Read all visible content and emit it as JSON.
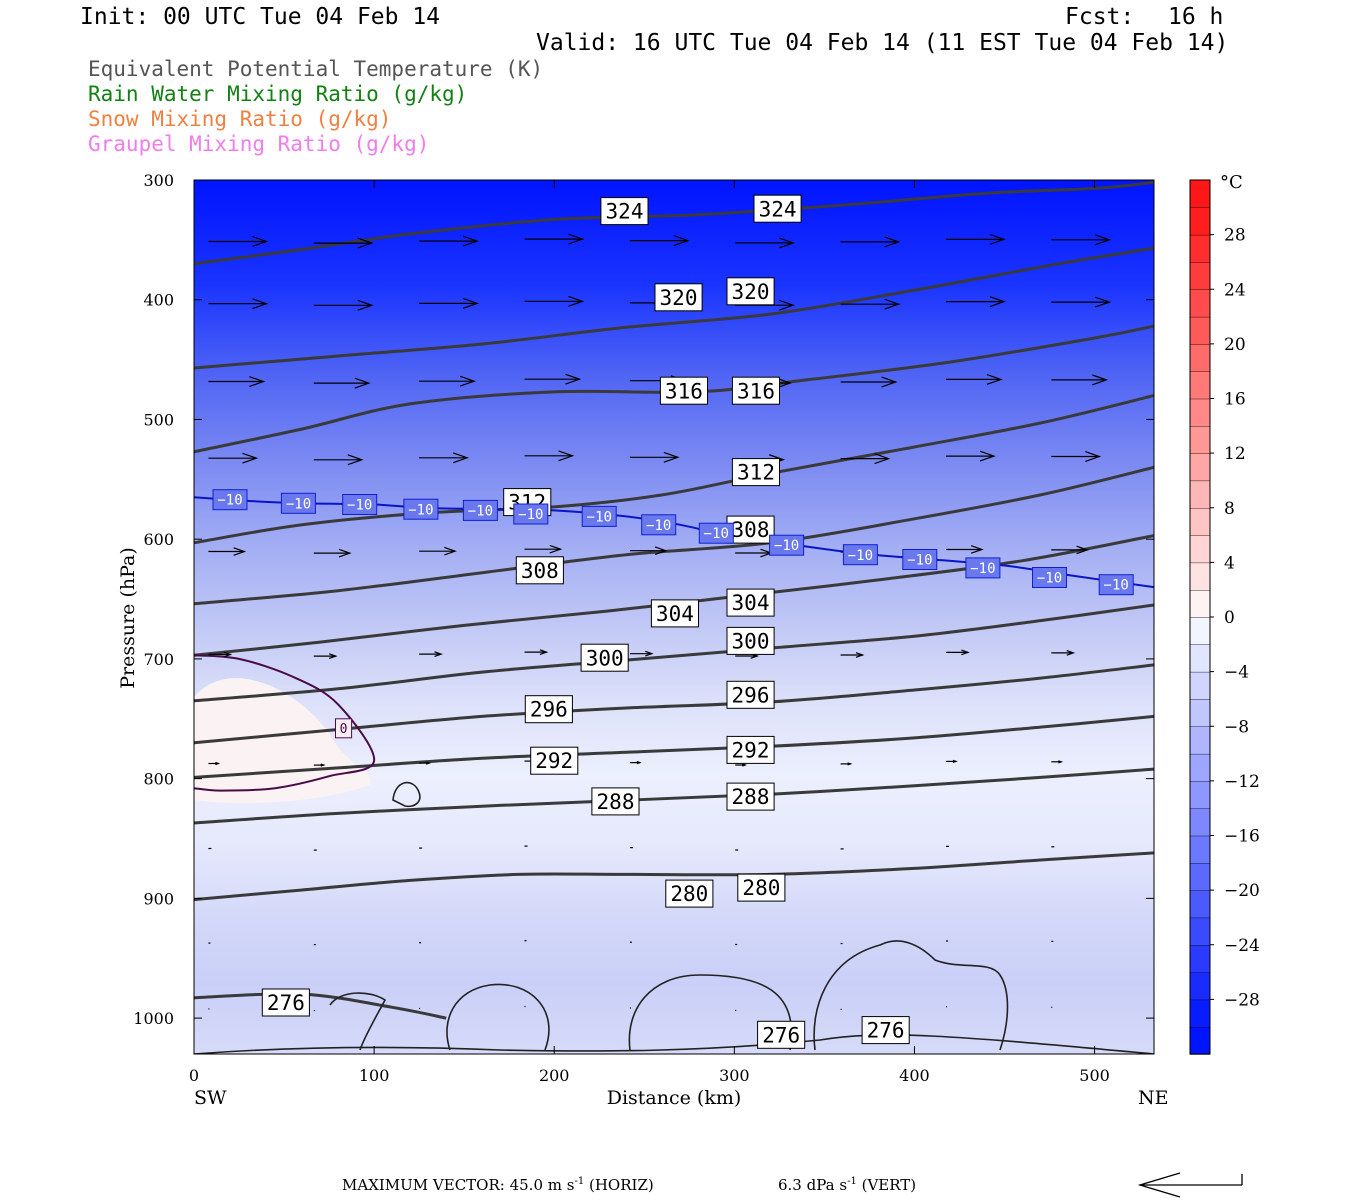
{
  "header": {
    "init": "Init: 00 UTC Tue 04 Feb 14",
    "fcst_label": "Fcst:",
    "fcst_value": "16 h",
    "valid": "Valid: 16 UTC Tue 04 Feb 14 (11 EST Tue 04 Feb 14)"
  },
  "legend": [
    {
      "text": "Equivalent Potential Temperature (K)",
      "color": "#555555"
    },
    {
      "text": "Rain Water Mixing Ratio (g/kg)",
      "color": "#138013"
    },
    {
      "text": "Snow Mixing Ratio (g/kg)",
      "color": "#f08040"
    },
    {
      "text": "Graupel Mixing Ratio (g/kg)",
      "color": "#f07cf0"
    }
  ],
  "footer": {
    "max_vector": "MAXIMUM VECTOR:  45.0 m s",
    "horiz_unit": "(HORIZ)",
    "vert_value": "6.3 dPa s",
    "vert_unit": "(VERT)",
    "exp": "-1"
  },
  "chart_data": {
    "type": "cross-section",
    "xlabel": "Distance (km)",
    "ylabel": "Pressure (hPa)",
    "x_range": [
      0,
      533
    ],
    "y_range": [
      300,
      1030
    ],
    "x_ticks": [
      0,
      100,
      200,
      300,
      400,
      500
    ],
    "y_ticks": [
      300,
      400,
      500,
      600,
      700,
      800,
      900,
      1000
    ],
    "left_end_label": "SW",
    "right_end_label": "NE",
    "colorbar": {
      "unit": "°C",
      "levels": [
        -32,
        -30,
        -28,
        -26,
        -24,
        -22,
        -20,
        -18,
        -16,
        -14,
        -12,
        -10,
        -8,
        -6,
        -4,
        -2,
        0,
        2,
        4,
        6,
        8,
        10,
        12,
        14,
        16,
        18,
        20,
        22,
        24,
        26,
        28,
        30,
        32
      ],
      "tick_labels": [
        "28",
        "24",
        "20",
        "16",
        "12",
        "8",
        "4",
        "0",
        "−4",
        "−8",
        "−12",
        "−16",
        "−20",
        "−24",
        "−28"
      ],
      "tick_values": [
        28,
        24,
        20,
        16,
        12,
        8,
        4,
        0,
        -4,
        -8,
        -12,
        -16,
        -20,
        -24,
        -28
      ]
    },
    "theta_e_contours": [
      {
        "value": 324,
        "points": [
          [
            0,
            370
          ],
          [
            60,
            358
          ],
          [
            120,
            345
          ],
          [
            200,
            333
          ],
          [
            280,
            329
          ],
          [
            360,
            321
          ],
          [
            440,
            311
          ],
          [
            500,
            307
          ],
          [
            533,
            302
          ]
        ],
        "labels": [
          [
            239,
            326
          ],
          [
            324,
            324
          ]
        ]
      },
      {
        "value": 320,
        "points": [
          [
            0,
            457
          ],
          [
            80,
            447
          ],
          [
            160,
            437
          ],
          [
            240,
            423
          ],
          [
            320,
            412
          ],
          [
            400,
            392
          ],
          [
            480,
            370
          ],
          [
            533,
            357
          ]
        ],
        "labels": [
          [
            269,
            398
          ],
          [
            309,
            393
          ]
        ]
      },
      {
        "value": 316,
        "points": [
          [
            0,
            527
          ],
          [
            60,
            508
          ],
          [
            120,
            487
          ],
          [
            200,
            477
          ],
          [
            280,
            477
          ],
          [
            340,
            467
          ],
          [
            420,
            452
          ],
          [
            500,
            432
          ],
          [
            533,
            422
          ]
        ],
        "labels": [
          [
            272,
            476
          ],
          [
            312,
            476
          ]
        ]
      },
      {
        "value": 312,
        "points": [
          [
            0,
            603
          ],
          [
            60,
            588
          ],
          [
            130,
            578
          ],
          [
            200,
            573
          ],
          [
            260,
            563
          ],
          [
            320,
            545
          ],
          [
            400,
            523
          ],
          [
            470,
            503
          ],
          [
            533,
            480
          ]
        ],
        "labels": [
          [
            185,
            569
          ],
          [
            312,
            544
          ]
        ]
      },
      {
        "value": 308,
        "points": [
          [
            0,
            654
          ],
          [
            80,
            643
          ],
          [
            160,
            628
          ],
          [
            240,
            613
          ],
          [
            320,
            603
          ],
          [
            400,
            583
          ],
          [
            470,
            563
          ],
          [
            533,
            540
          ]
        ],
        "labels": [
          [
            192,
            626
          ],
          [
            309,
            592
          ]
        ]
      },
      {
        "value": 304,
        "points": [
          [
            0,
            697
          ],
          [
            70,
            686
          ],
          [
            150,
            672
          ],
          [
            230,
            660
          ],
          [
            300,
            648
          ],
          [
            380,
            634
          ],
          [
            460,
            618
          ],
          [
            533,
            597
          ]
        ],
        "labels": [
          [
            267,
            662
          ],
          [
            309,
            653
          ]
        ]
      },
      {
        "value": 300,
        "points": [
          [
            0,
            735
          ],
          [
            80,
            725
          ],
          [
            160,
            711
          ],
          [
            240,
            701
          ],
          [
            320,
            691
          ],
          [
            400,
            681
          ],
          [
            470,
            668
          ],
          [
            533,
            655
          ]
        ],
        "labels": [
          [
            228,
            699
          ],
          [
            309,
            685
          ]
        ]
      },
      {
        "value": 296,
        "points": [
          [
            0,
            770
          ],
          [
            80,
            759
          ],
          [
            160,
            748
          ],
          [
            240,
            741
          ],
          [
            320,
            736
          ],
          [
            400,
            726
          ],
          [
            470,
            716
          ],
          [
            533,
            705
          ]
        ],
        "labels": [
          [
            197,
            742
          ],
          [
            309,
            730
          ]
        ]
      },
      {
        "value": 292,
        "points": [
          [
            0,
            799
          ],
          [
            80,
            791
          ],
          [
            160,
            783
          ],
          [
            240,
            778
          ],
          [
            320,
            773
          ],
          [
            400,
            766
          ],
          [
            470,
            757
          ],
          [
            533,
            748
          ]
        ],
        "labels": [
          [
            200,
            785
          ],
          [
            309,
            776
          ]
        ]
      },
      {
        "value": 288,
        "points": [
          [
            0,
            837
          ],
          [
            80,
            829
          ],
          [
            160,
            823
          ],
          [
            240,
            818
          ],
          [
            320,
            813
          ],
          [
            400,
            806
          ],
          [
            470,
            799
          ],
          [
            533,
            792
          ]
        ],
        "labels": [
          [
            234,
            819
          ],
          [
            309,
            815
          ]
        ]
      },
      {
        "value": 280,
        "points": [
          [
            0,
            901
          ],
          [
            60,
            893
          ],
          [
            120,
            885
          ],
          [
            180,
            880
          ],
          [
            240,
            880
          ],
          [
            320,
            880
          ],
          [
            400,
            875
          ],
          [
            470,
            868
          ],
          [
            533,
            862
          ]
        ],
        "labels": [
          [
            275,
            896
          ],
          [
            315,
            891
          ]
        ]
      },
      {
        "value": 276,
        "points": [
          [
            0,
            983
          ],
          [
            60,
            980
          ],
          [
            110,
            991
          ],
          [
            140,
            1000
          ]
        ],
        "labels": [
          [
            51,
            987
          ]
        ]
      }
    ],
    "isotherm_minus10": {
      "value": -10,
      "points": [
        [
          0,
          565
        ],
        [
          30,
          568
        ],
        [
          60,
          570
        ],
        [
          100,
          571
        ],
        [
          130,
          574
        ],
        [
          170,
          575
        ],
        [
          200,
          576
        ],
        [
          240,
          581
        ],
        [
          270,
          588
        ],
        [
          300,
          598
        ],
        [
          330,
          604
        ],
        [
          370,
          612
        ],
        [
          410,
          617
        ],
        [
          450,
          622
        ],
        [
          490,
          631
        ],
        [
          533,
          640
        ]
      ],
      "labels": [
        [
          20,
          567
        ],
        [
          58,
          570
        ],
        [
          92,
          571
        ],
        [
          126,
          575
        ],
        [
          159,
          576
        ],
        [
          187,
          579
        ],
        [
          225,
          581
        ],
        [
          258,
          588
        ],
        [
          290,
          595
        ],
        [
          329,
          605
        ],
        [
          370,
          613
        ],
        [
          403,
          617
        ],
        [
          438,
          624
        ],
        [
          475,
          632
        ],
        [
          512,
          638
        ]
      ]
    },
    "isotherm_0": {
      "value": 0,
      "points": [
        [
          0,
          697
        ],
        [
          25,
          700
        ],
        [
          55,
          715
        ],
        [
          80,
          738
        ],
        [
          100,
          785
        ],
        [
          75,
          798
        ],
        [
          45,
          808
        ],
        [
          15,
          810
        ],
        [
          0,
          808
        ]
      ],
      "labels": [
        [
          83,
          758
        ]
      ]
    },
    "wind_max_horiz": 45.0,
    "wind_max_vert": 6.3
  }
}
